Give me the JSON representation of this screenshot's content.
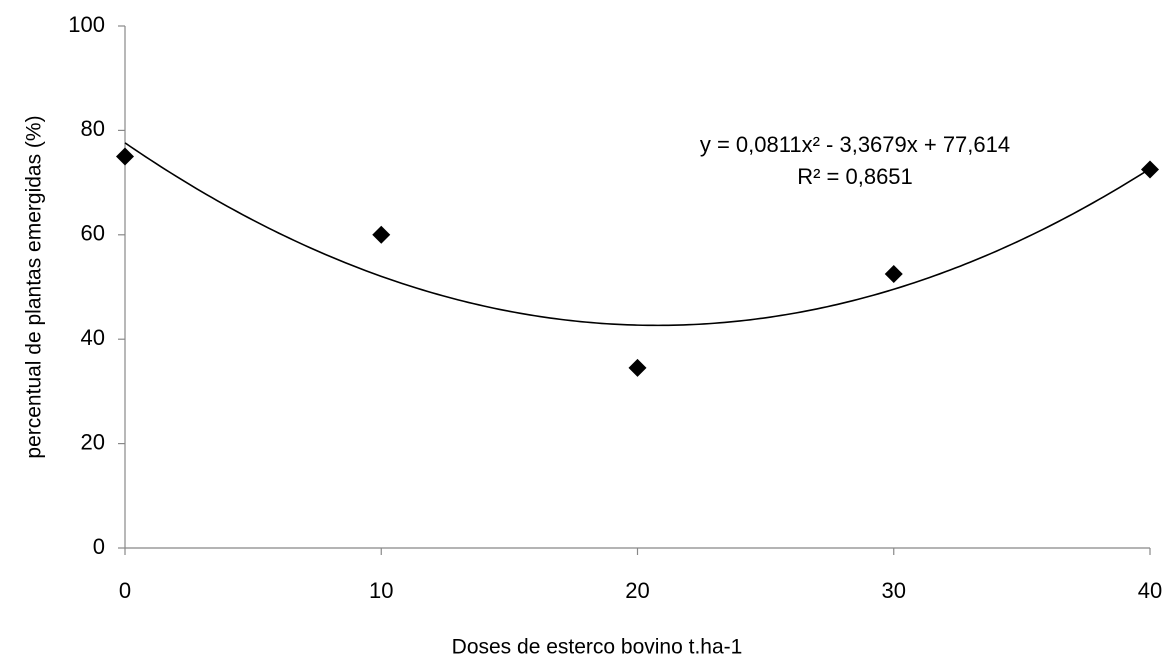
{
  "chart_data": {
    "type": "scatter",
    "x_label": "Doses de esterco bovino t.ha-1",
    "y_label": "percentual de plantas emergidas (%)",
    "x": [
      0,
      10,
      20,
      30,
      40
    ],
    "series": [
      {
        "color": "#000000",
        "values": [
          75,
          60,
          34.5,
          52.5,
          72.5
        ]
      }
    ],
    "xlim": [
      0,
      40
    ],
    "xticks": [
      0,
      10,
      20,
      30,
      40
    ],
    "ylim": [
      0,
      100
    ],
    "yticks": [
      0,
      20,
      40,
      60,
      80,
      100
    ],
    "grid": false,
    "trendline": {
      "type": "polynomial",
      "color": "#000000",
      "coefficients": [
        77.614,
        -3.3679,
        0.0811
      ],
      "equation": "y = 0,0811x² - 3,3679x + 77,614",
      "r2_label": "R² = 0,8651"
    }
  }
}
